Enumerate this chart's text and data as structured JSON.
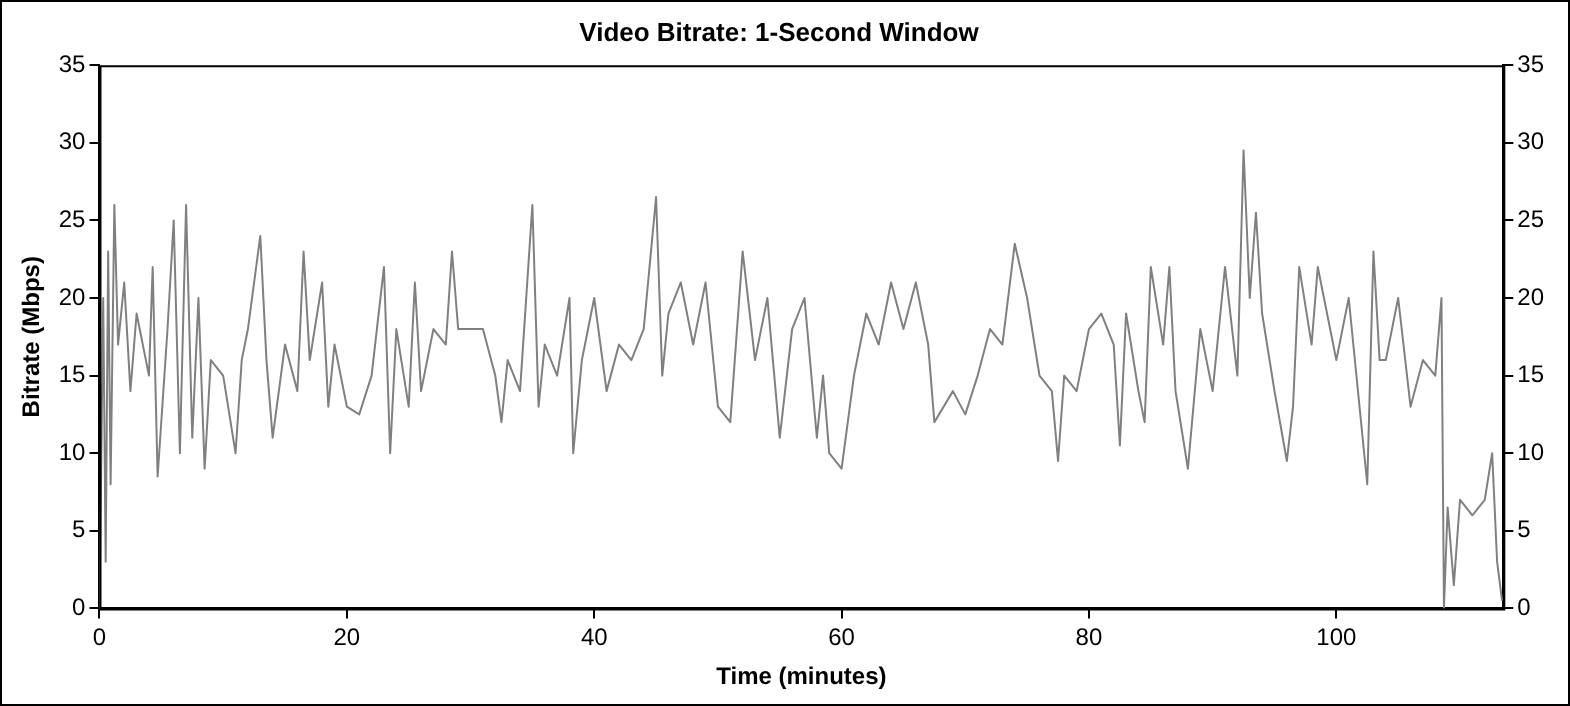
{
  "chart_data": {
    "type": "line",
    "title": "Video Bitrate: 1-Second Window",
    "xlabel": "Time (minutes)",
    "ylabel": "Bitrate (Mbps)",
    "xlim": [
      0,
      113.5
    ],
    "xticks": [
      0,
      20,
      40,
      60,
      80,
      100
    ],
    "ylim": [
      0,
      35
    ],
    "yticks": [
      0,
      5,
      10,
      15,
      20,
      25,
      30,
      35
    ],
    "y2lim": [
      0,
      35
    ],
    "y2ticks": [
      0,
      5,
      10,
      15,
      20,
      25,
      30,
      35
    ],
    "grid": false,
    "legend": false,
    "marker": "none",
    "line_style": "solid",
    "x": [
      0,
      0.3,
      0.5,
      0.7,
      0.9,
      1.2,
      1.5,
      2,
      2.5,
      3,
      4,
      4.3,
      4.7,
      5.5,
      6,
      6.5,
      7,
      7.5,
      8,
      8.5,
      9,
      10,
      11,
      11.5,
      12,
      13,
      13.5,
      14,
      15,
      16,
      16.5,
      17,
      18,
      18.5,
      19,
      20,
      21,
      22,
      23,
      23.5,
      24,
      25,
      25.5,
      26,
      27,
      28,
      28.5,
      29,
      31,
      32,
      32.5,
      33,
      34,
      35,
      35.5,
      36,
      37,
      38,
      38.3,
      39,
      40,
      41,
      42,
      43,
      44,
      45,
      45.5,
      46,
      47,
      48,
      49,
      50,
      51,
      52,
      53,
      54,
      55,
      56,
      57,
      58,
      58.5,
      59,
      60,
      61,
      62,
      63,
      64,
      65,
      66,
      67,
      67.5,
      69,
      70,
      71,
      72,
      73,
      74,
      75,
      76,
      77,
      77.5,
      78,
      79,
      80,
      81,
      82,
      82.5,
      83,
      84,
      84.5,
      85,
      86,
      86.5,
      87,
      88,
      89,
      90,
      91,
      92,
      92.5,
      93,
      93.5,
      94,
      95,
      96,
      96.5,
      97,
      98,
      98.5,
      99,
      100,
      101,
      102,
      102.5,
      103,
      103.5,
      104,
      105,
      106,
      107,
      108,
      108.5,
      108.7,
      109,
      109.5,
      110,
      111,
      112,
      112.6,
      113,
      113.4
    ],
    "series": [
      {
        "color": "#808080",
        "values": [
          0,
          20,
          3,
          23,
          8,
          26,
          17,
          21,
          14,
          19,
          15,
          22,
          8.5,
          18,
          25,
          10,
          26,
          11,
          20,
          9,
          16,
          15,
          10,
          16,
          18,
          24,
          16,
          11,
          17,
          14,
          23,
          16,
          21,
          13,
          17,
          13,
          12.5,
          15,
          22,
          10,
          18,
          13,
          21,
          14,
          18,
          17,
          23,
          18,
          18,
          15,
          12,
          16,
          14,
          26,
          13,
          17,
          15,
          20,
          10,
          16,
          20,
          14,
          17,
          16,
          18,
          26.5,
          15,
          19,
          21,
          17,
          21,
          13,
          12,
          23,
          16,
          20,
          11,
          18,
          20,
          11,
          15,
          10,
          9,
          15,
          19,
          17,
          21,
          18,
          21,
          17,
          12,
          14,
          12.5,
          15,
          18,
          17,
          23.5,
          20,
          15,
          14,
          9.5,
          15,
          14,
          18,
          19,
          17,
          10.5,
          19,
          14,
          12,
          22,
          17,
          22,
          14,
          9,
          18,
          14,
          22,
          15,
          29.5,
          20,
          25.5,
          19,
          14,
          9.5,
          13,
          22,
          17,
          22,
          20,
          16,
          20,
          12,
          8,
          23,
          16,
          16,
          20,
          13,
          16,
          15,
          20,
          0,
          6.5,
          1.5,
          7,
          6,
          7,
          10,
          3,
          0.5
        ]
      }
    ]
  }
}
